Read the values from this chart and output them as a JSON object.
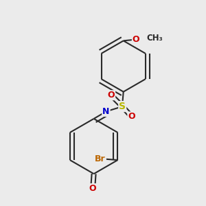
{
  "bg_color": "#ebebeb",
  "bond_color": "#2a2a2a",
  "bond_width": 1.5,
  "atom_colors": {
    "S": "#b8b800",
    "N": "#0000cc",
    "O": "#cc0000",
    "Br": "#bb6600",
    "C": "#2a2a2a"
  }
}
